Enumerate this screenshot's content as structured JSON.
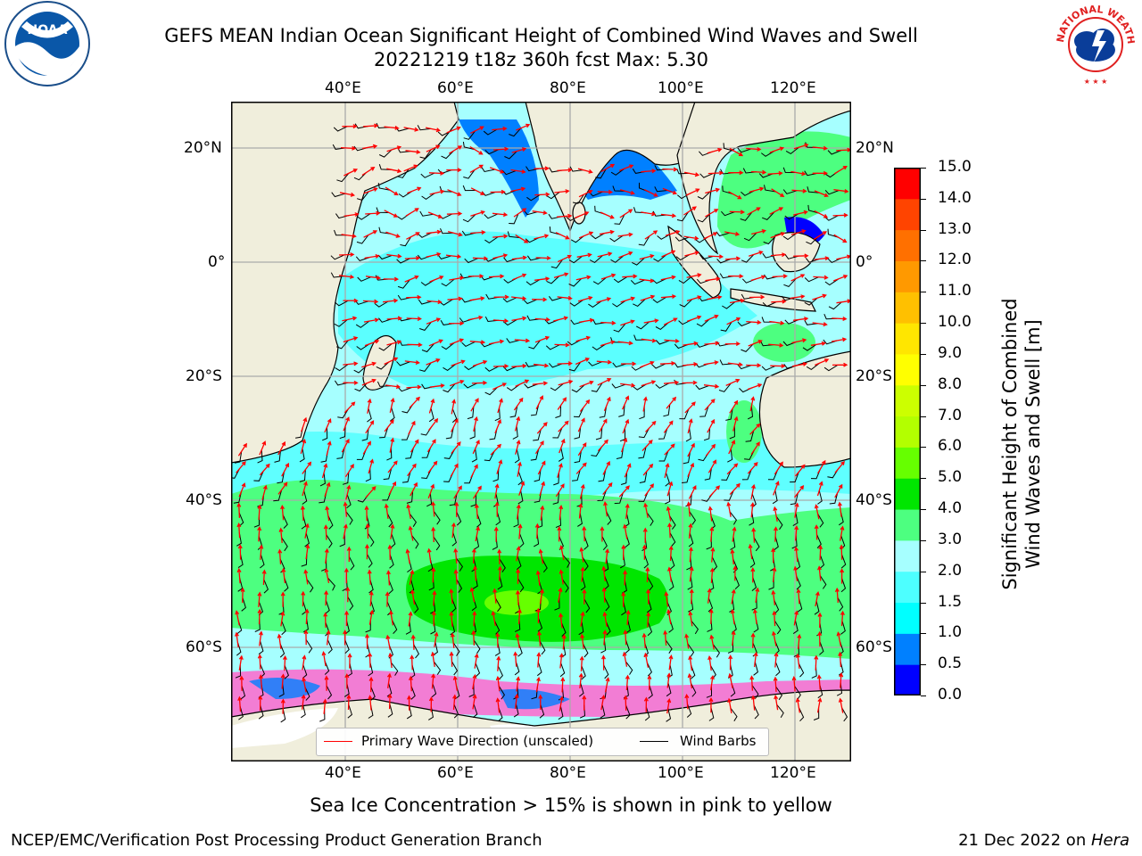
{
  "header": {
    "title_line1": "GEFS MEAN Indian Ocean Significant Height of Combined Wind Waves and Swell",
    "title_line2": "20221219 t18z 360h fcst   Max: 5.30"
  },
  "logos": {
    "left_logo_text": "NOAA",
    "right_logo_text": "NATIONAL WEATHER SERVICE",
    "left_logo_color": "#0a57a8",
    "right_logo_color": "#e02020"
  },
  "map": {
    "lon_ticks": [
      "40°E",
      "60°E",
      "80°E",
      "100°E",
      "120°E"
    ],
    "lat_ticks": [
      "20°N",
      "0°",
      "20°S",
      "40°S",
      "60°S"
    ],
    "land_color": "#f0eedc",
    "low_wave_color": "#a6ffff",
    "legend": {
      "wave_direction": "Primary Wave Direction (unscaled)",
      "wind_barbs": "Wind Barbs"
    }
  },
  "colorbar": {
    "label_line1": "Significant Height of Combined",
    "label_line2": "Wind Waves and Swell [m]",
    "ticks": [
      "0.0",
      "0.5",
      "1.0",
      "1.5",
      "2.0",
      "3.0",
      "4.0",
      "5.0",
      "6.0",
      "7.0",
      "8.0",
      "9.0",
      "10.0",
      "11.0",
      "12.0",
      "13.0",
      "14.0",
      "15.0"
    ],
    "colors": [
      "#0000ff",
      "#0080ff",
      "#00ffff",
      "#4dffff",
      "#a6ffff",
      "#4dff80",
      "#00e600",
      "#66ff00",
      "#b3ff00",
      "#ccff00",
      "#ffff00",
      "#ffe600",
      "#ffc000",
      "#ff9900",
      "#ff7000",
      "#ff4400",
      "#ff0000"
    ]
  },
  "footer": {
    "note": "Sea Ice Concentration > 15% is shown in pink to yellow",
    "branch": "NCEP/EMC/Verification Post Processing Product Generation Branch",
    "date": "21 Dec 2022 on ",
    "machine": "Hera"
  }
}
